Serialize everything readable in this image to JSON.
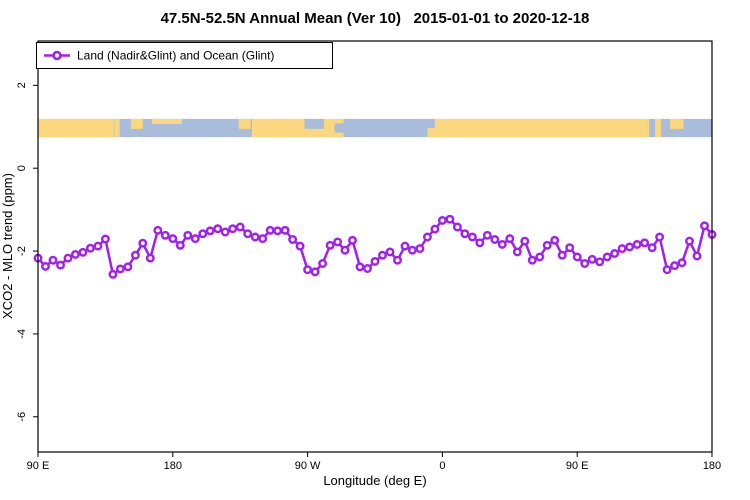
{
  "window": {
    "background": "#ffffff"
  },
  "colors": {
    "series": "#A020F0",
    "marker_fill": "#ffffff",
    "land": "#FBD77D",
    "ocean": "#A9BCDB",
    "axis": "#000000",
    "text": "#000000"
  },
  "legend": {
    "label": "Land (Nadir&Glint) and Ocean (Glint)"
  },
  "chart_data": {
    "type": "line",
    "title": "47.5N-52.5N Annual Mean (Ver 10)   2015-01-01 to 2020-12-18",
    "xlabel": "Longitude (deg E)",
    "ylabel": "XCO2 - MLO trend (ppm)",
    "legend_entries": [
      "Land (Nadir&Glint) and Ocean (Glint)"
    ],
    "legend_position": "topleft",
    "grid": false,
    "xlim": [
      90,
      540
    ],
    "ylim": [
      -6.85,
      3.07
    ],
    "x_ticks": [
      {
        "deg": 90,
        "label": "90 E"
      },
      {
        "deg": 180,
        "label": "180"
      },
      {
        "deg": 270,
        "label": "90 W"
      },
      {
        "deg": 360,
        "label": "0"
      },
      {
        "deg": 450,
        "label": "90 E"
      },
      {
        "deg": 540,
        "label": "180"
      }
    ],
    "y_ticks": [
      {
        "value": 2,
        "label": "2"
      },
      {
        "value": 0,
        "label": "0"
      },
      {
        "value": -2,
        "label": "-2"
      },
      {
        "value": -4,
        "label": "-4"
      },
      {
        "value": -6,
        "label": "-6"
      }
    ],
    "x_start_deg": 90,
    "x_step_deg": 5,
    "values": [
      -2.17,
      -2.37,
      -2.22,
      -2.34,
      -2.17,
      -2.08,
      -2.03,
      -1.93,
      -1.88,
      -1.71,
      -2.56,
      -2.43,
      -2.38,
      -2.1,
      -1.81,
      -2.17,
      -1.5,
      -1.62,
      -1.7,
      -1.86,
      -1.62,
      -1.7,
      -1.58,
      -1.51,
      -1.46,
      -1.54,
      -1.46,
      -1.42,
      -1.58,
      -1.66,
      -1.7,
      -1.5,
      -1.51,
      -1.5,
      -1.72,
      -1.88,
      -2.45,
      -2.5,
      -2.3,
      -1.86,
      -1.78,
      -1.98,
      -1.74,
      -2.38,
      -2.42,
      -2.25,
      -2.1,
      -2.02,
      -2.22,
      -1.88,
      -1.98,
      -1.94,
      -1.66,
      -1.47,
      -1.26,
      -1.23,
      -1.42,
      -1.58,
      -1.66,
      -1.8,
      -1.62,
      -1.72,
      -1.84,
      -1.7,
      -2.02,
      -1.76,
      -2.22,
      -2.14,
      -1.86,
      -1.74,
      -2.1,
      -1.92,
      -2.14,
      -2.3,
      -2.2,
      -2.26,
      -2.14,
      -2.06,
      -1.94,
      -1.9,
      -1.84,
      -1.8,
      -1.92,
      -1.66,
      -2.45,
      -2.35,
      -2.28,
      -1.76,
      -2.12,
      -1.39,
      -1.6
    ],
    "land_ocean_band": {
      "description": "land/ocean surface strip drawn across the plot",
      "y_top": 1.19,
      "y_bottom": 0.75,
      "base_segments": [
        {
          "from": 90,
          "to": 140.5,
          "surface": "land"
        },
        {
          "from": 140.5,
          "to": 233,
          "surface": "ocean"
        },
        {
          "from": 233,
          "to": 294,
          "surface": "land"
        },
        {
          "from": 294,
          "to": 355,
          "surface": "ocean"
        },
        {
          "from": 355,
          "to": 498,
          "surface": "land"
        },
        {
          "from": 498,
          "to": 540,
          "surface": "ocean"
        }
      ],
      "patches": [
        {
          "from": 141,
          "to": 144.5,
          "surface": "land",
          "extent": "full"
        },
        {
          "from": 152,
          "to": 160,
          "surface": "land",
          "extent": "top"
        },
        {
          "from": 166,
          "to": 186,
          "surface": "land",
          "extent": "sliver"
        },
        {
          "from": 224,
          "to": 232,
          "surface": "land",
          "extent": "top"
        },
        {
          "from": 268,
          "to": 281,
          "surface": "ocean",
          "extent": "top"
        },
        {
          "from": 288,
          "to": 295,
          "surface": "ocean",
          "extent": "mid"
        },
        {
          "from": 350,
          "to": 356,
          "surface": "land",
          "extent": "bottom"
        },
        {
          "from": 502,
          "to": 506,
          "surface": "land",
          "extent": "full"
        },
        {
          "from": 512,
          "to": 521,
          "surface": "land",
          "extent": "top"
        }
      ]
    }
  }
}
